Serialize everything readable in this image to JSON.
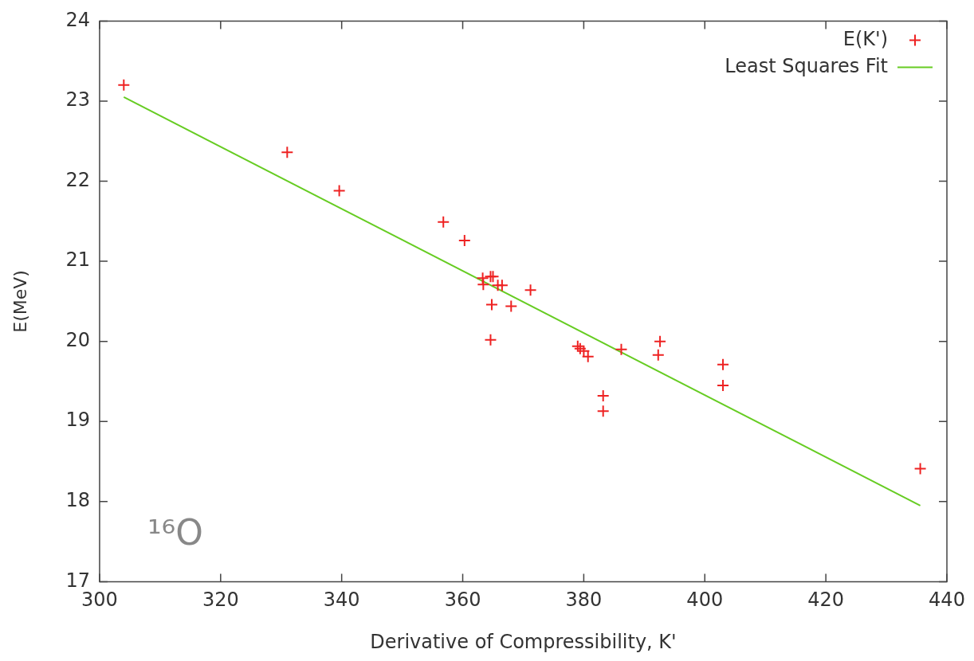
{
  "chart_data": {
    "type": "scatter",
    "xlabel": "Derivative of Compressibility, K'",
    "ylabel": "E(MeV)",
    "xlim": [
      300,
      440
    ],
    "xticks": [
      300,
      320,
      340,
      360,
      380,
      400,
      420,
      440
    ],
    "ylim": [
      17,
      24
    ],
    "yticks": [
      17,
      18,
      19,
      20,
      21,
      22,
      23,
      24
    ],
    "grid": false,
    "legend": "top right",
    "annotations": [
      "¹⁶O"
    ],
    "series": [
      {
        "name": "E(K')",
        "color": "#ee2222",
        "marker": "cross",
        "x": [
          304.0,
          331.0,
          339.6,
          356.8,
          360.3,
          363.3,
          363.4,
          364.6,
          365.0,
          365.8,
          366.5,
          371.2,
          364.8,
          368.0,
          364.6,
          379.0,
          379.4,
          380.0,
          380.7,
          386.2,
          392.6,
          392.3,
          403.0,
          403.0,
          383.2,
          383.2,
          435.6
        ],
        "values": [
          23.2,
          22.36,
          21.88,
          21.49,
          21.26,
          20.79,
          20.71,
          20.81,
          20.81,
          20.7,
          20.7,
          20.64,
          20.46,
          20.44,
          20.02,
          19.94,
          19.91,
          19.88,
          19.81,
          19.9,
          20.0,
          19.83,
          19.71,
          19.45,
          19.32,
          19.13,
          18.41
        ]
      },
      {
        "name": "Least Squares Fit",
        "color": "#66cc22",
        "type": "line",
        "x": [
          304.0,
          435.6
        ],
        "values": [
          23.05,
          17.95
        ]
      }
    ]
  }
}
